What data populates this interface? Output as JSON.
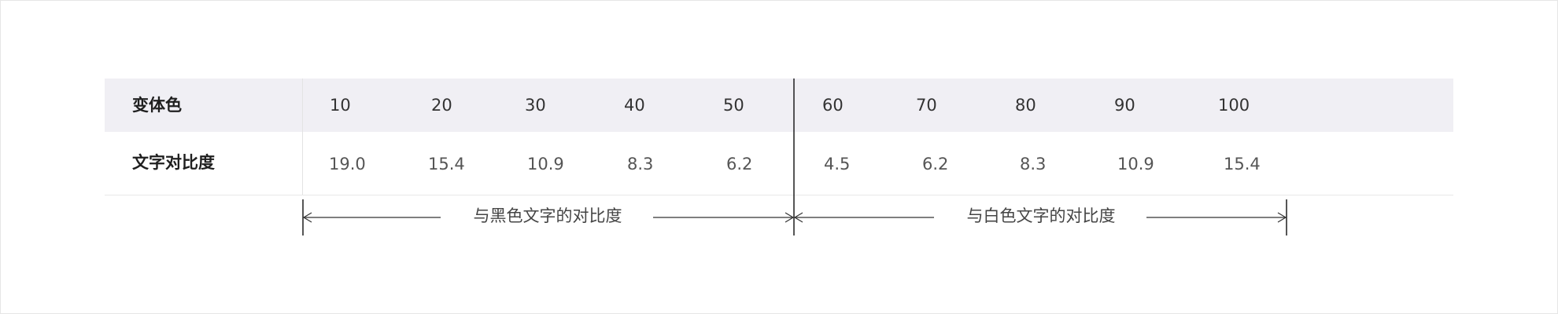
{
  "table": {
    "header_label": "变体色",
    "row_label": "文字对比度",
    "columns": [
      "10",
      "20",
      "30",
      "40",
      "50",
      "60",
      "70",
      "80",
      "90",
      "100"
    ],
    "values": [
      "19.0",
      "15.4",
      "10.9",
      "8.3",
      "6.2",
      "4.5",
      "6.2",
      "8.3",
      "10.9",
      "15.4"
    ]
  },
  "annotations": {
    "black_text_contrast": "与黑色文字的对比度",
    "white_text_contrast": "与白色文字的对比度"
  },
  "colors": {
    "header_bg": "#f0eff4",
    "divider": "#222222"
  }
}
